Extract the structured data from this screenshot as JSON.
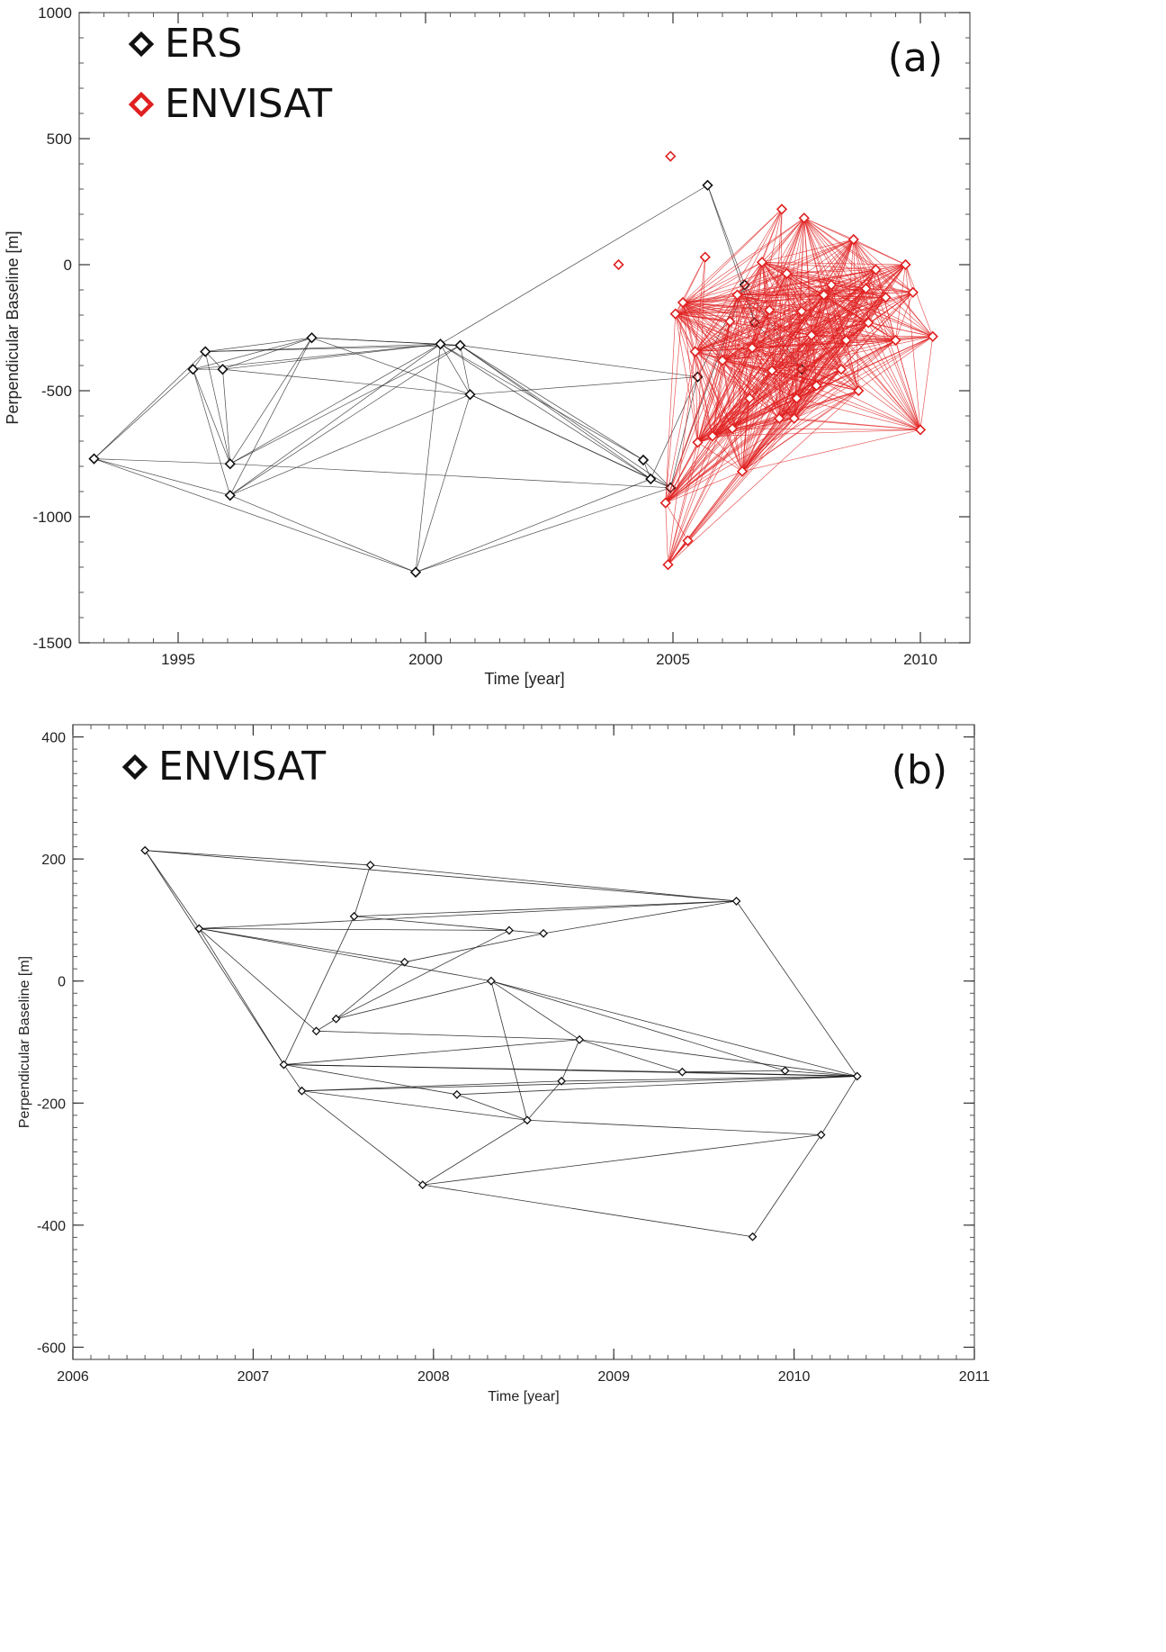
{
  "chart_data": [
    {
      "type": "scatter",
      "title": "",
      "panel_label": "(a)",
      "xlabel": "Time [year]",
      "ylabel": "Perpendicular Baseline [m]",
      "xlim": [
        1993.0,
        2011.0
      ],
      "ylim": [
        -1500,
        1000
      ],
      "xticks": [
        1995,
        2000,
        2005,
        2010
      ],
      "yticks": [
        1000,
        500,
        0,
        -500,
        -1000,
        -1500
      ],
      "legend": [
        {
          "label": "ERS",
          "color": "#111111"
        },
        {
          "label": "ENVISAT",
          "color": "#e02020"
        }
      ],
      "legend_position": "top-left",
      "series": [
        {
          "name": "ERS",
          "color": "#111111",
          "points": [
            [
              1993.3,
              -770
            ],
            [
              1995.3,
              -415
            ],
            [
              1995.55,
              -345
            ],
            [
              1995.9,
              -415
            ],
            [
              1996.05,
              -790
            ],
            [
              1996.05,
              -915
            ],
            [
              1997.7,
              -290
            ],
            [
              1999.8,
              -1220
            ],
            [
              2000.3,
              -315
            ],
            [
              2000.7,
              -320
            ],
            [
              2000.9,
              -515
            ],
            [
              2004.4,
              -775
            ],
            [
              2004.55,
              -850
            ],
            [
              2004.95,
              -885
            ],
            [
              2005.5,
              -445
            ],
            [
              2005.7,
              315
            ],
            [
              2006.45,
              -80
            ],
            [
              2006.65,
              -230
            ],
            [
              2007.6,
              -415
            ]
          ],
          "edges": [
            [
              0,
              1
            ],
            [
              0,
              2
            ],
            [
              0,
              4
            ],
            [
              0,
              5
            ],
            [
              0,
              7
            ],
            [
              1,
              2
            ],
            [
              1,
              3
            ],
            [
              1,
              4
            ],
            [
              1,
              5
            ],
            [
              1,
              6
            ],
            [
              1,
              8
            ],
            [
              2,
              3
            ],
            [
              2,
              6
            ],
            [
              2,
              8
            ],
            [
              2,
              9
            ],
            [
              2,
              4
            ],
            [
              3,
              4
            ],
            [
              3,
              6
            ],
            [
              3,
              8
            ],
            [
              3,
              10
            ],
            [
              4,
              6
            ],
            [
              4,
              8
            ],
            [
              4,
              9
            ],
            [
              4,
              13
            ],
            [
              5,
              6
            ],
            [
              5,
              7
            ],
            [
              5,
              8
            ],
            [
              5,
              9
            ],
            [
              5,
              10
            ],
            [
              6,
              8
            ],
            [
              6,
              9
            ],
            [
              6,
              10
            ],
            [
              7,
              8
            ],
            [
              7,
              10
            ],
            [
              7,
              12
            ],
            [
              7,
              13
            ],
            [
              8,
              9
            ],
            [
              8,
              10
            ],
            [
              8,
              11
            ],
            [
              8,
              12
            ],
            [
              8,
              15
            ],
            [
              9,
              10
            ],
            [
              9,
              11
            ],
            [
              9,
              12
            ],
            [
              9,
              13
            ],
            [
              9,
              14
            ],
            [
              10,
              12
            ],
            [
              10,
              13
            ],
            [
              10,
              14
            ],
            [
              11,
              12
            ],
            [
              11,
              13
            ],
            [
              12,
              13
            ],
            [
              12,
              14
            ],
            [
              13,
              14
            ],
            [
              13,
              16
            ],
            [
              14,
              16
            ],
            [
              15,
              16
            ],
            [
              15,
              17
            ],
            [
              16,
              17
            ],
            [
              16,
              18
            ],
            [
              17,
              18
            ]
          ]
        },
        {
          "name": "ENVISAT",
          "color": "#e02020",
          "points": [
            [
              2003.9,
              0
            ],
            [
              2004.85,
              -945
            ],
            [
              2004.9,
              -1190
            ],
            [
              2004.95,
              430
            ],
            [
              2005.05,
              -195
            ],
            [
              2005.2,
              -150
            ],
            [
              2005.3,
              -1095
            ],
            [
              2005.45,
              -345
            ],
            [
              2005.5,
              -705
            ],
            [
              2005.65,
              30
            ],
            [
              2005.8,
              -680
            ],
            [
              2006.0,
              -380
            ],
            [
              2006.15,
              -225
            ],
            [
              2006.3,
              -120
            ],
            [
              2006.4,
              -820
            ],
            [
              2006.55,
              -530
            ],
            [
              2006.6,
              -330
            ],
            [
              2006.8,
              10
            ],
            [
              2006.95,
              -180
            ],
            [
              2007.0,
              -420
            ],
            [
              2007.15,
              -610
            ],
            [
              2007.2,
              220
            ],
            [
              2007.3,
              -35
            ],
            [
              2007.45,
              -610
            ],
            [
              2007.6,
              -185
            ],
            [
              2007.65,
              185
            ],
            [
              2007.8,
              -280
            ],
            [
              2007.9,
              -480
            ],
            [
              2008.05,
              -120
            ],
            [
              2008.2,
              -80
            ],
            [
              2008.4,
              -415
            ],
            [
              2008.5,
              -300
            ],
            [
              2008.65,
              100
            ],
            [
              2008.75,
              -500
            ],
            [
              2008.9,
              -95
            ],
            [
              2009.1,
              -20
            ],
            [
              2009.3,
              -130
            ],
            [
              2009.5,
              -300
            ],
            [
              2009.7,
              0
            ],
            [
              2009.85,
              -110
            ],
            [
              2010.0,
              -655
            ],
            [
              2010.25,
              -285
            ],
            [
              2008.95,
              -230
            ],
            [
              2006.2,
              -650
            ],
            [
              2007.5,
              -530
            ]
          ],
          "edges": "dense"
        }
      ]
    },
    {
      "type": "scatter",
      "title": "",
      "panel_label": "(b)",
      "xlabel": "Time [year]",
      "ylabel": "Perpendicular Baseline [m]",
      "xlim": [
        2006.0,
        2011.0
      ],
      "ylim": [
        -620,
        420
      ],
      "xticks": [
        2006,
        2007,
        2008,
        2009,
        2010,
        2011
      ],
      "yticks": [
        400,
        200,
        0,
        -200,
        -400,
        -600
      ],
      "legend": [
        {
          "label": "ENVISAT",
          "color": "#111111"
        }
      ],
      "legend_position": "top-left",
      "series": [
        {
          "name": "ENVISAT",
          "color": "#111111",
          "points": [
            [
              2006.4,
              214
            ],
            [
              2006.7,
              86
            ],
            [
              2007.17,
              -137
            ],
            [
              2007.27,
              -180
            ],
            [
              2007.35,
              -82
            ],
            [
              2007.46,
              -62
            ],
            [
              2007.56,
              106
            ],
            [
              2007.65,
              190
            ],
            [
              2007.84,
              31
            ],
            [
              2007.94,
              -334
            ],
            [
              2008.13,
              -186
            ],
            [
              2008.32,
              0
            ],
            [
              2008.42,
              83
            ],
            [
              2008.52,
              -228
            ],
            [
              2008.61,
              78
            ],
            [
              2008.71,
              -164
            ],
            [
              2008.81,
              -96
            ],
            [
              2009.38,
              -149
            ],
            [
              2009.68,
              131
            ],
            [
              2009.77,
              -419
            ],
            [
              2009.95,
              -147
            ],
            [
              2010.15,
              -252
            ],
            [
              2010.35,
              -156
            ]
          ],
          "edges": [
            [
              0,
              1
            ],
            [
              0,
              2
            ],
            [
              0,
              7
            ],
            [
              0,
              18
            ],
            [
              1,
              2
            ],
            [
              1,
              4
            ],
            [
              1,
              8
            ],
            [
              1,
              11
            ],
            [
              1,
              12
            ],
            [
              2,
              3
            ],
            [
              2,
              6
            ],
            [
              2,
              10
            ],
            [
              2,
              16
            ],
            [
              2,
              17
            ],
            [
              3,
              9
            ],
            [
              3,
              13
            ],
            [
              3,
              15
            ],
            [
              4,
              5
            ],
            [
              4,
              16
            ],
            [
              5,
              12
            ],
            [
              5,
              11
            ],
            [
              6,
              7
            ],
            [
              6,
              18
            ],
            [
              7,
              18
            ],
            [
              8,
              14
            ],
            [
              9,
              13
            ],
            [
              9,
              19
            ],
            [
              9,
              21
            ],
            [
              10,
              13
            ],
            [
              11,
              13
            ],
            [
              11,
              16
            ],
            [
              11,
              20
            ],
            [
              11,
              22
            ],
            [
              13,
              15
            ],
            [
              13,
              21
            ],
            [
              14,
              18
            ],
            [
              15,
              16
            ],
            [
              15,
              22
            ],
            [
              16,
              17
            ],
            [
              16,
              22
            ],
            [
              17,
              22
            ],
            [
              18,
              22
            ],
            [
              19,
              21
            ],
            [
              20,
              22
            ],
            [
              21,
              22
            ],
            [
              1,
              18
            ],
            [
              12,
              14
            ],
            [
              5,
              8
            ],
            [
              6,
              12
            ],
            [
              17,
              20
            ],
            [
              10,
              22
            ],
            [
              2,
              22
            ],
            [
              3,
              22
            ]
          ]
        }
      ]
    }
  ]
}
